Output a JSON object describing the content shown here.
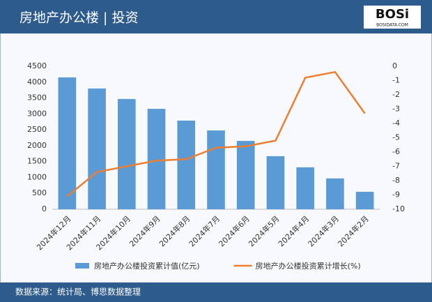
{
  "chart_data": {
    "type": "bar-line",
    "title": "房地产办公楼 | 投资",
    "logo": "BOSi",
    "logo_sub": "BOSIDATA.COM",
    "source": "数据来源：统计局、博思数据整理",
    "categories": [
      "2024年12月",
      "2024年11月",
      "2024年10月",
      "2024年9月",
      "2024年8月",
      "2024年7月",
      "2024年6月",
      "2024年5月",
      "2024年4月",
      "2024年3月",
      "2024年2月"
    ],
    "series": [
      {
        "name": "房地产办公楼投资累计值(亿元)",
        "type": "bar",
        "color": "#5b9bd5",
        "values": [
          4150,
          3800,
          3470,
          3160,
          2790,
          2480,
          2150,
          1670,
          1320,
          970,
          550
        ]
      },
      {
        "name": "房地产办公楼投资累计增长(%)",
        "type": "line",
        "axis": "y2",
        "color": "#ed7d31",
        "values": [
          -9.1,
          -7.4,
          -7.0,
          -6.6,
          -6.5,
          -5.7,
          -5.6,
          -5.2,
          -0.8,
          -0.4,
          -3.3
        ]
      }
    ],
    "ylim": [
      0,
      4500
    ],
    "yticks": [
      0,
      500,
      1000,
      1500,
      2000,
      2500,
      3000,
      3500,
      4000,
      4500
    ],
    "y2lim": [
      -10,
      0
    ],
    "y2ticks": [
      0,
      -1,
      -2,
      -3,
      -4,
      -5,
      -6,
      -7,
      -8,
      -9,
      -10
    ],
    "grid": false,
    "legend": "bottom"
  }
}
